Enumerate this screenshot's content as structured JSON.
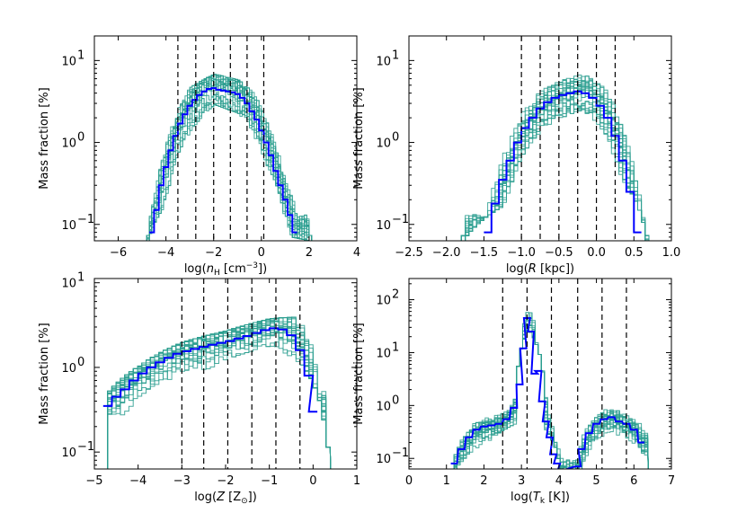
{
  "figure": {
    "description_colors": {
      "median": "#0000ff",
      "realization": "#2a9d8f",
      "vline": "#000000"
    }
  },
  "chart_data": [
    {
      "type": "line",
      "panel": "top-left",
      "xlabel": "log(n_H [cm^-3])",
      "xlabel_parts": {
        "pre": "log(",
        "var": "n",
        "sub": "H",
        "post": " [cm",
        "sup": "−3",
        "end": "])"
      },
      "ylabel": "Mass fraction [%]",
      "xlim": [
        -7,
        4
      ],
      "ylim_log": [
        -1.2,
        1.3
      ],
      "yscale": "log",
      "xticks": [
        -6,
        -4,
        -2,
        0,
        2,
        4
      ],
      "xtick_labels": [
        "−6",
        "−4",
        "−2",
        "0",
        "2",
        "4"
      ],
      "yticks": [
        {
          "base": "10",
          "exp": "-1"
        },
        {
          "base": "10",
          "exp": "0"
        },
        {
          "base": "10",
          "exp": "1"
        }
      ],
      "vlines": [
        -3.5,
        -2.75,
        -2.0,
        -1.3,
        -0.6,
        0.1
      ],
      "median": {
        "x": [
          -4.6,
          -4.4,
          -4.2,
          -4.0,
          -3.8,
          -3.6,
          -3.4,
          -3.2,
          -3.0,
          -2.8,
          -2.6,
          -2.4,
          -2.2,
          -2.0,
          -1.8,
          -1.6,
          -1.4,
          -1.2,
          -1.0,
          -0.8,
          -0.6,
          -0.4,
          -0.2,
          0.0,
          0.2,
          0.4,
          0.6,
          0.8,
          1.0,
          1.2,
          1.4
        ],
        "y": [
          0.08,
          0.15,
          0.3,
          0.5,
          0.8,
          1.2,
          1.7,
          2.2,
          2.8,
          3.3,
          3.8,
          4.2,
          4.5,
          4.6,
          4.4,
          4.3,
          4.2,
          4.1,
          3.9,
          3.5,
          3.0,
          2.4,
          1.9,
          1.4,
          1.0,
          0.7,
          0.45,
          0.3,
          0.2,
          0.13,
          0.08
        ]
      },
      "spread": {
        "x": [
          -4.8,
          -4.0,
          -3.0,
          -2.0,
          -1.0,
          0.0,
          1.0,
          2.0
        ],
        "lower": [
          0.07,
          0.2,
          1.5,
          3.2,
          2.5,
          0.7,
          0.08,
          0.07
        ],
        "upper": [
          0.07,
          1.0,
          4.5,
          6.5,
          5.5,
          2.8,
          0.6,
          0.07
        ]
      }
    },
    {
      "type": "line",
      "panel": "top-right",
      "xlabel": "log(R [kpc])",
      "xlabel_parts": {
        "pre": "log(",
        "var": "R",
        "sub": "",
        "post": " [kpc",
        "sup": "",
        "end": "])"
      },
      "ylabel": "Mass fraction [%]",
      "xlim": [
        -2.5,
        1.0
      ],
      "ylim_log": [
        -1.2,
        1.3
      ],
      "yscale": "log",
      "xticks": [
        -2.5,
        -2.0,
        -1.5,
        -1.0,
        -0.5,
        0.0,
        0.5,
        1.0
      ],
      "xtick_labels": [
        "−2.5",
        "−2.0",
        "−1.5",
        "−1.0",
        "−0.5",
        "0.0",
        "0.5",
        "1.0"
      ],
      "yticks": [
        {
          "base": "10",
          "exp": "-1"
        },
        {
          "base": "10",
          "exp": "0"
        },
        {
          "base": "10",
          "exp": "1"
        }
      ],
      "vlines": [
        -1.0,
        -0.75,
        -0.5,
        -0.25,
        0.0,
        0.25
      ],
      "median": {
        "x": [
          -1.45,
          -1.35,
          -1.25,
          -1.15,
          -1.05,
          -0.95,
          -0.85,
          -0.75,
          -0.65,
          -0.55,
          -0.45,
          -0.35,
          -0.25,
          -0.15,
          -0.05,
          0.05,
          0.15,
          0.25,
          0.35,
          0.45,
          0.55
        ],
        "y": [
          0.08,
          0.18,
          0.35,
          0.6,
          1.0,
          1.5,
          2.0,
          2.6,
          3.1,
          3.5,
          3.8,
          4.0,
          4.2,
          4.0,
          3.5,
          2.8,
          2.0,
          1.2,
          0.6,
          0.25,
          0.08
        ]
      },
      "spread": {
        "x": [
          -1.8,
          -1.2,
          -0.6,
          -0.2,
          0.2,
          0.65
        ],
        "lower": [
          0.07,
          0.2,
          2.0,
          2.8,
          0.5,
          0.07
        ],
        "upper": [
          0.07,
          1.2,
          5.0,
          6.5,
          3.5,
          0.07
        ]
      }
    },
    {
      "type": "line",
      "panel": "bottom-left",
      "xlabel": "log(Z [Z_sun])",
      "xlabel_parts": {
        "pre": "log(",
        "var": "Z",
        "sub": "",
        "post": " [Z",
        "sup": "",
        "sub2": "⊙",
        "end": "])"
      },
      "ylabel": "Mass fraction [%]",
      "xlim": [
        -5,
        1
      ],
      "ylim_log": [
        -1.2,
        1.05
      ],
      "yscale": "log",
      "xticks": [
        -5,
        -4,
        -3,
        -2,
        -1,
        0,
        1
      ],
      "xtick_labels": [
        "−5",
        "−4",
        "−3",
        "−2",
        "−1",
        "0",
        "1"
      ],
      "yticks": [
        {
          "base": "10",
          "exp": "-1"
        },
        {
          "base": "10",
          "exp": "0"
        },
        {
          "base": "10",
          "exp": "1"
        }
      ],
      "vlines": [
        -3.0,
        -2.5,
        -1.95,
        -1.4,
        -0.85,
        -0.3
      ],
      "median": {
        "x": [
          -4.7,
          -4.5,
          -4.3,
          -4.1,
          -3.9,
          -3.7,
          -3.5,
          -3.3,
          -3.1,
          -2.9,
          -2.7,
          -2.5,
          -2.3,
          -2.1,
          -1.9,
          -1.7,
          -1.5,
          -1.3,
          -1.1,
          -0.9,
          -0.7,
          -0.5,
          -0.3,
          -0.1,
          0.0
        ],
        "y": [
          0.35,
          0.45,
          0.55,
          0.7,
          0.85,
          1.0,
          1.15,
          1.3,
          1.45,
          1.55,
          1.65,
          1.75,
          1.85,
          1.95,
          2.05,
          2.2,
          2.35,
          2.55,
          2.75,
          2.9,
          2.8,
          2.4,
          1.6,
          0.8,
          0.3
        ]
      },
      "spread": {
        "x": [
          -4.7,
          -4.0,
          -3.0,
          -2.0,
          -1.0,
          -0.3,
          0.3
        ],
        "lower": [
          0.08,
          0.15,
          0.6,
          1.4,
          2.0,
          1.2,
          0.07
        ],
        "upper": [
          0.5,
          1.0,
          1.9,
          2.6,
          3.6,
          3.8,
          0.07
        ]
      }
    },
    {
      "type": "line",
      "panel": "bottom-right",
      "xlabel": "log(T_k [K])",
      "xlabel_parts": {
        "pre": "log(",
        "var": "T",
        "sub": "k",
        "post": " [K",
        "sup": "",
        "end": "])"
      },
      "ylabel": "Mass fraction [%]",
      "xlim": [
        0,
        7
      ],
      "ylim_log": [
        -1.2,
        2.4
      ],
      "yscale": "log",
      "xticks": [
        0,
        1,
        2,
        3,
        4,
        5,
        6,
        7
      ],
      "xtick_labels": [
        "0",
        "1",
        "2",
        "3",
        "4",
        "5",
        "6",
        "7"
      ],
      "yticks": [
        {
          "base": "10",
          "exp": "-1"
        },
        {
          "base": "10",
          "exp": "0"
        },
        {
          "base": "10",
          "exp": "1"
        },
        {
          "base": "10",
          "exp": "2"
        }
      ],
      "vlines": [
        2.5,
        3.15,
        3.8,
        4.5,
        5.15,
        5.8
      ],
      "median": {
        "x": [
          1.2,
          1.4,
          1.6,
          1.8,
          2.0,
          2.2,
          2.4,
          2.6,
          2.8,
          2.95,
          3.05,
          3.15,
          3.25,
          3.35,
          3.45,
          3.55,
          3.65,
          3.75,
          3.85,
          3.95,
          4.05,
          4.5,
          4.6,
          4.8,
          5.0,
          5.2,
          5.4,
          5.6,
          5.8,
          6.0,
          6.2
        ],
        "y": [
          0.08,
          0.15,
          0.25,
          0.35,
          0.4,
          0.42,
          0.45,
          0.55,
          0.9,
          2.5,
          12,
          45,
          25,
          4,
          4.5,
          1.2,
          0.5,
          0.25,
          0.12,
          0.08,
          0.06,
          0.07,
          0.15,
          0.3,
          0.45,
          0.55,
          0.6,
          0.5,
          0.45,
          0.35,
          0.2
        ]
      },
      "spread": {
        "x": [
          1.2,
          2.0,
          2.8,
          3.15,
          3.6,
          4.0,
          4.6,
          5.4,
          6.3
        ],
        "lower": [
          0.07,
          0.2,
          0.5,
          30,
          0.4,
          0.07,
          0.07,
          0.3,
          0.07
        ],
        "upper": [
          0.15,
          0.7,
          1.5,
          60,
          2.0,
          0.15,
          0.25,
          1.4,
          0.9
        ]
      }
    }
  ]
}
